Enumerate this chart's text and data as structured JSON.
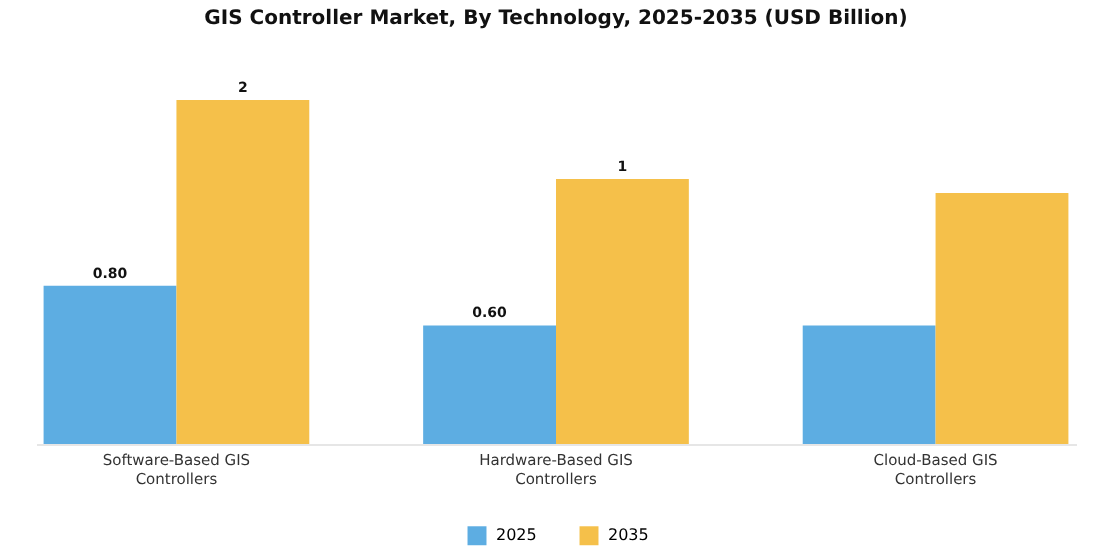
{
  "chart_data": {
    "type": "bar",
    "title": "GIS Controller Market, By Technology, 2025-2035 (USD Billion)",
    "categories": [
      "Software-Based GIS Controllers",
      "Hardware-Based GIS Controllers",
      "Cloud-Based GIS Controllers"
    ],
    "series": [
      {
        "name": "2025",
        "color": "#5dade2",
        "values": [
          0.8,
          0.6,
          0.6
        ],
        "value_labels": [
          "0.80",
          "0.60",
          null
        ]
      },
      {
        "name": "2035",
        "color": "#f5c04a",
        "values": [
          1.74,
          1.34,
          1.27
        ],
        "value_labels": [
          "2",
          "1",
          null
        ]
      }
    ],
    "legend": "bottom"
  }
}
